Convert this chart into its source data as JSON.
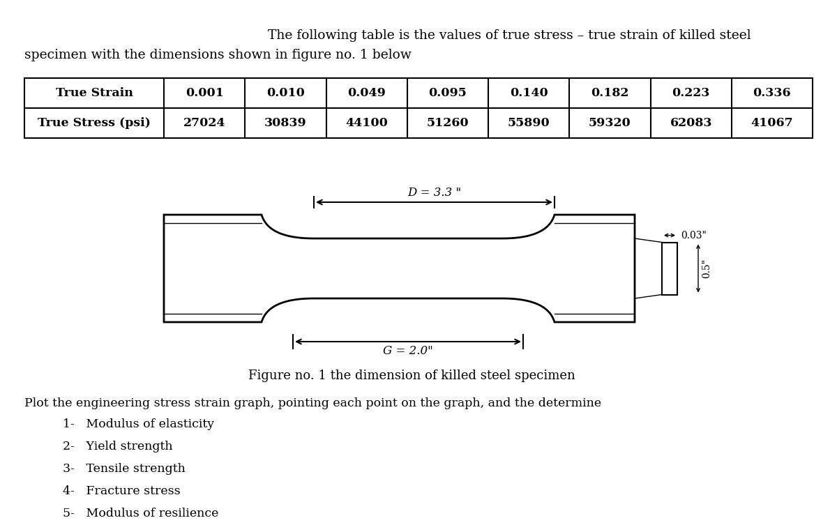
{
  "title_line1": "The following table is the values of true stress – true strain of killed steel",
  "title_line2": "specimen with the dimensions shown in figure no. 1 below",
  "table_headers": [
    "True Strain",
    "0.001",
    "0.010",
    "0.049",
    "0.095",
    "0.140",
    "0.182",
    "0.223",
    "0.336"
  ],
  "table_row2": [
    "True Stress (psi)",
    "27024",
    "30839",
    "44100",
    "51260",
    "55890",
    "59320",
    "62083",
    "41067"
  ],
  "figure_caption": "Figure no. 1 the dimension of killed steel specimen",
  "dim_D": "D = 3.3 \"",
  "dim_G": "G = 2.0\"",
  "dim_r": "0.03\"",
  "dim_d": "0.5\"",
  "instruction_line": "Plot the engineering stress strain graph, pointing each point on the graph, and the determine",
  "items": [
    "1-   Modulus of elasticity",
    "2-   Yield strength",
    "3-   Tensile strength",
    "4-   Fracture stress",
    "5-   Modulus of resilience"
  ],
  "bg_color": "#ffffff",
  "text_color": "#000000",
  "font_size_title": 13.5,
  "font_size_table": 12.5,
  "font_size_body": 12.5
}
